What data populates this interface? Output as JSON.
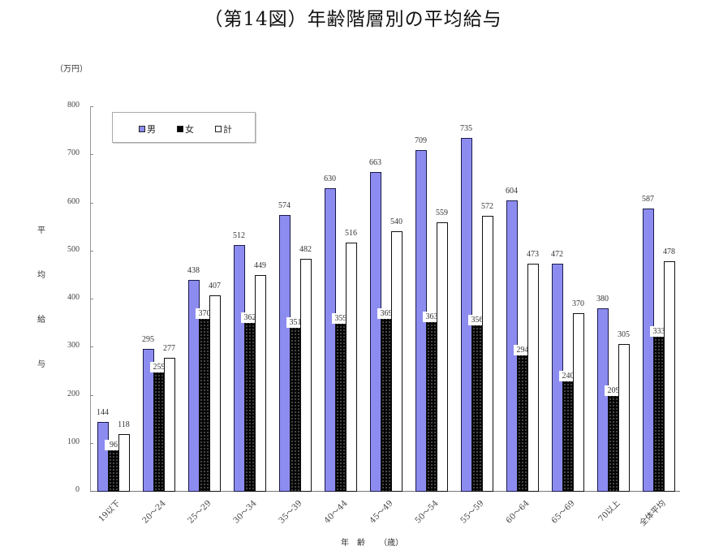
{
  "title": "（第14図）年齢階層別の平均給与",
  "unit_label": "（万円）",
  "chart_data": {
    "type": "bar",
    "title": "（第14図）年齢階層別の平均給与",
    "xlabel": "年　齢（歳）",
    "ylabel": "平均給与",
    "unit": "万円",
    "ylim": [
      0,
      800
    ],
    "yticks": [
      0,
      100,
      200,
      300,
      400,
      500,
      600,
      700,
      800
    ],
    "grid": false,
    "legend_position": "top-left inside",
    "categories": [
      "19以下",
      "20～24",
      "25～29",
      "30～34",
      "35～39",
      "40～44",
      "45～49",
      "50～54",
      "55～59",
      "60～64",
      "65～69",
      "70以上",
      "全体平均"
    ],
    "series": [
      {
        "name": "男",
        "color": "#8c8cf0",
        "values": [
          144,
          295,
          438,
          512,
          574,
          630,
          663,
          709,
          735,
          604,
          472,
          380,
          587
        ]
      },
      {
        "name": "女",
        "color": "#050505",
        "values": [
          96,
          259,
          370,
          362,
          351,
          359,
          369,
          363,
          356,
          294,
          240,
          209,
          333
        ]
      },
      {
        "name": "計",
        "color": "#ffffff",
        "values": [
          118,
          277,
          407,
          449,
          482,
          516,
          540,
          559,
          572,
          473,
          370,
          305,
          478
        ]
      }
    ]
  },
  "ylabel_chars": [
    "平",
    "均",
    "給",
    "与"
  ],
  "xlabel_text": "年　齢 （歳）",
  "legend": [
    {
      "label": "男",
      "swatch": "#8c8cf0"
    },
    {
      "label": "女",
      "swatch": "#050505"
    },
    {
      "label": "計",
      "swatch": "#ffffff"
    }
  ]
}
